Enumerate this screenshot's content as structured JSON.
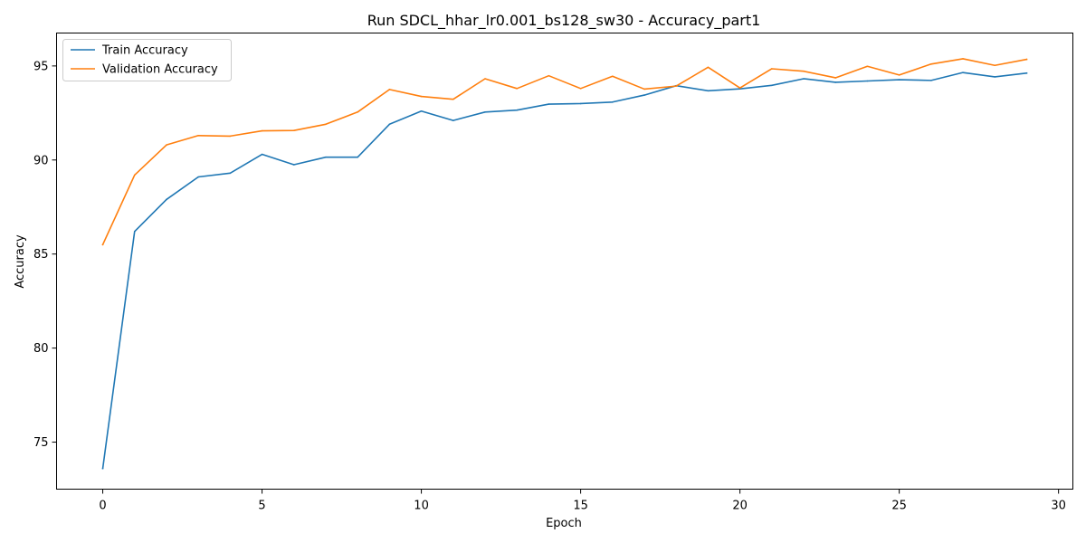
{
  "chart_data": {
    "type": "line",
    "title": "Run SDCL_hhar_lr0.001_bs128_sw30 - Accuracy_part1",
    "xlabel": "Epoch",
    "ylabel": "Accuracy",
    "xlim": [
      -1.45,
      30.45
    ],
    "ylim": [
      72.5,
      96.75
    ],
    "xticks": [
      0,
      5,
      10,
      15,
      20,
      25,
      30
    ],
    "yticks": [
      75,
      80,
      85,
      90,
      95
    ],
    "grid": false,
    "legend_position": "upper left",
    "x": [
      0,
      1,
      2,
      3,
      4,
      5,
      6,
      7,
      8,
      9,
      10,
      11,
      12,
      13,
      14,
      15,
      16,
      17,
      18,
      19,
      20,
      21,
      22,
      23,
      24,
      25,
      26,
      27,
      28,
      29
    ],
    "series": [
      {
        "name": "Train Accuracy",
        "color": "#1f77b4",
        "values": [
          73.6,
          86.2,
          87.9,
          89.1,
          89.3,
          90.3,
          89.75,
          90.15,
          90.15,
          91.9,
          92.6,
          92.1,
          92.55,
          92.65,
          92.97,
          93.0,
          93.08,
          93.45,
          93.95,
          93.68,
          93.78,
          93.97,
          94.32,
          94.13,
          94.2,
          94.27,
          94.23,
          94.65,
          94.42,
          94.62
        ]
      },
      {
        "name": "Validation Accuracy",
        "color": "#ff7f0e",
        "values": [
          85.5,
          89.2,
          90.8,
          91.3,
          91.27,
          91.55,
          91.57,
          91.9,
          92.55,
          93.75,
          93.38,
          93.23,
          94.32,
          93.8,
          94.48,
          93.8,
          94.45,
          93.77,
          93.93,
          94.93,
          93.83,
          94.85,
          94.72,
          94.37,
          94.98,
          94.52,
          95.1,
          95.38,
          95.03,
          95.35
        ]
      }
    ]
  }
}
